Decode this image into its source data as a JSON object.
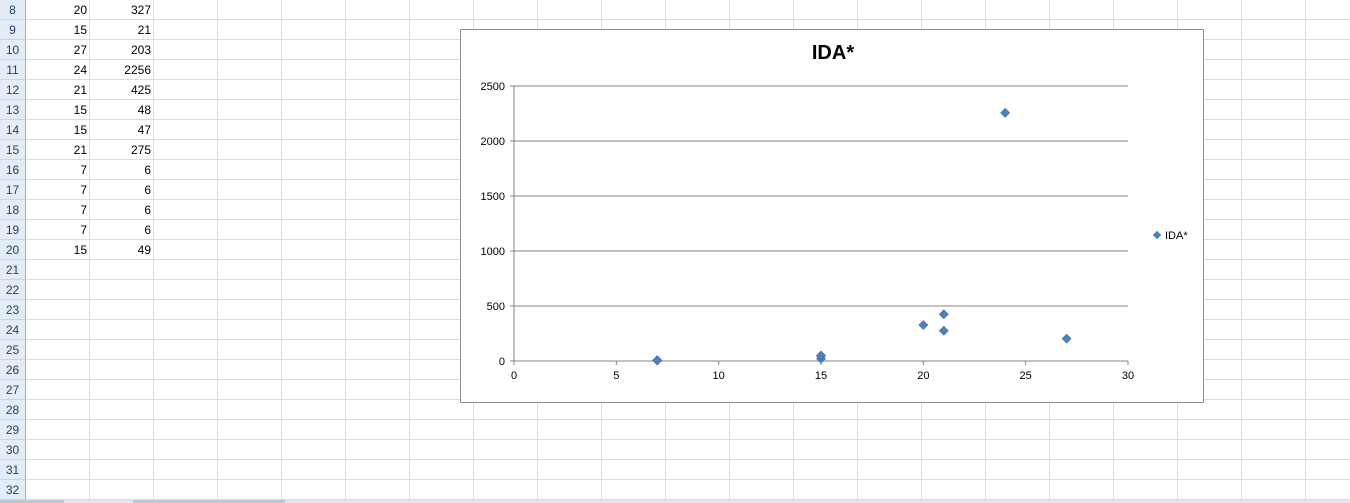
{
  "sheet": {
    "row_numbers": [
      "8",
      "9",
      "10",
      "11",
      "12",
      "13",
      "14",
      "15",
      "16",
      "17",
      "18",
      "19",
      "20",
      "21",
      "22",
      "23",
      "24",
      "25",
      "26",
      "27",
      "28",
      "29",
      "30",
      "31",
      "32"
    ],
    "rows": [
      {
        "a": "20",
        "b": "327"
      },
      {
        "a": "15",
        "b": "21"
      },
      {
        "a": "27",
        "b": "203"
      },
      {
        "a": "24",
        "b": "2256"
      },
      {
        "a": "21",
        "b": "425"
      },
      {
        "a": "15",
        "b": "48"
      },
      {
        "a": "15",
        "b": "47"
      },
      {
        "a": "21",
        "b": "275"
      },
      {
        "a": "7",
        "b": "6"
      },
      {
        "a": "7",
        "b": "6"
      },
      {
        "a": "7",
        "b": "6"
      },
      {
        "a": "7",
        "b": "6"
      },
      {
        "a": "15",
        "b": "49"
      }
    ]
  },
  "chart_data": {
    "type": "scatter",
    "title": "IDA*",
    "xlabel": "",
    "ylabel": "",
    "xlim": [
      0,
      30
    ],
    "ylim": [
      0,
      2500
    ],
    "x_ticks": [
      "0",
      "5",
      "10",
      "15",
      "20",
      "25",
      "30"
    ],
    "y_ticks": [
      "0",
      "500",
      "1000",
      "1500",
      "2000",
      "2500"
    ],
    "grid": "horizontal",
    "legend_position": "right",
    "marker": "diamond",
    "series": [
      {
        "name": "IDA*",
        "color": "#4f81bd",
        "x": [
          20,
          15,
          27,
          24,
          21,
          15,
          15,
          21,
          7,
          7,
          7,
          7,
          15
        ],
        "y": [
          327,
          21,
          203,
          2256,
          425,
          48,
          47,
          275,
          6,
          6,
          6,
          6,
          49
        ]
      }
    ]
  }
}
